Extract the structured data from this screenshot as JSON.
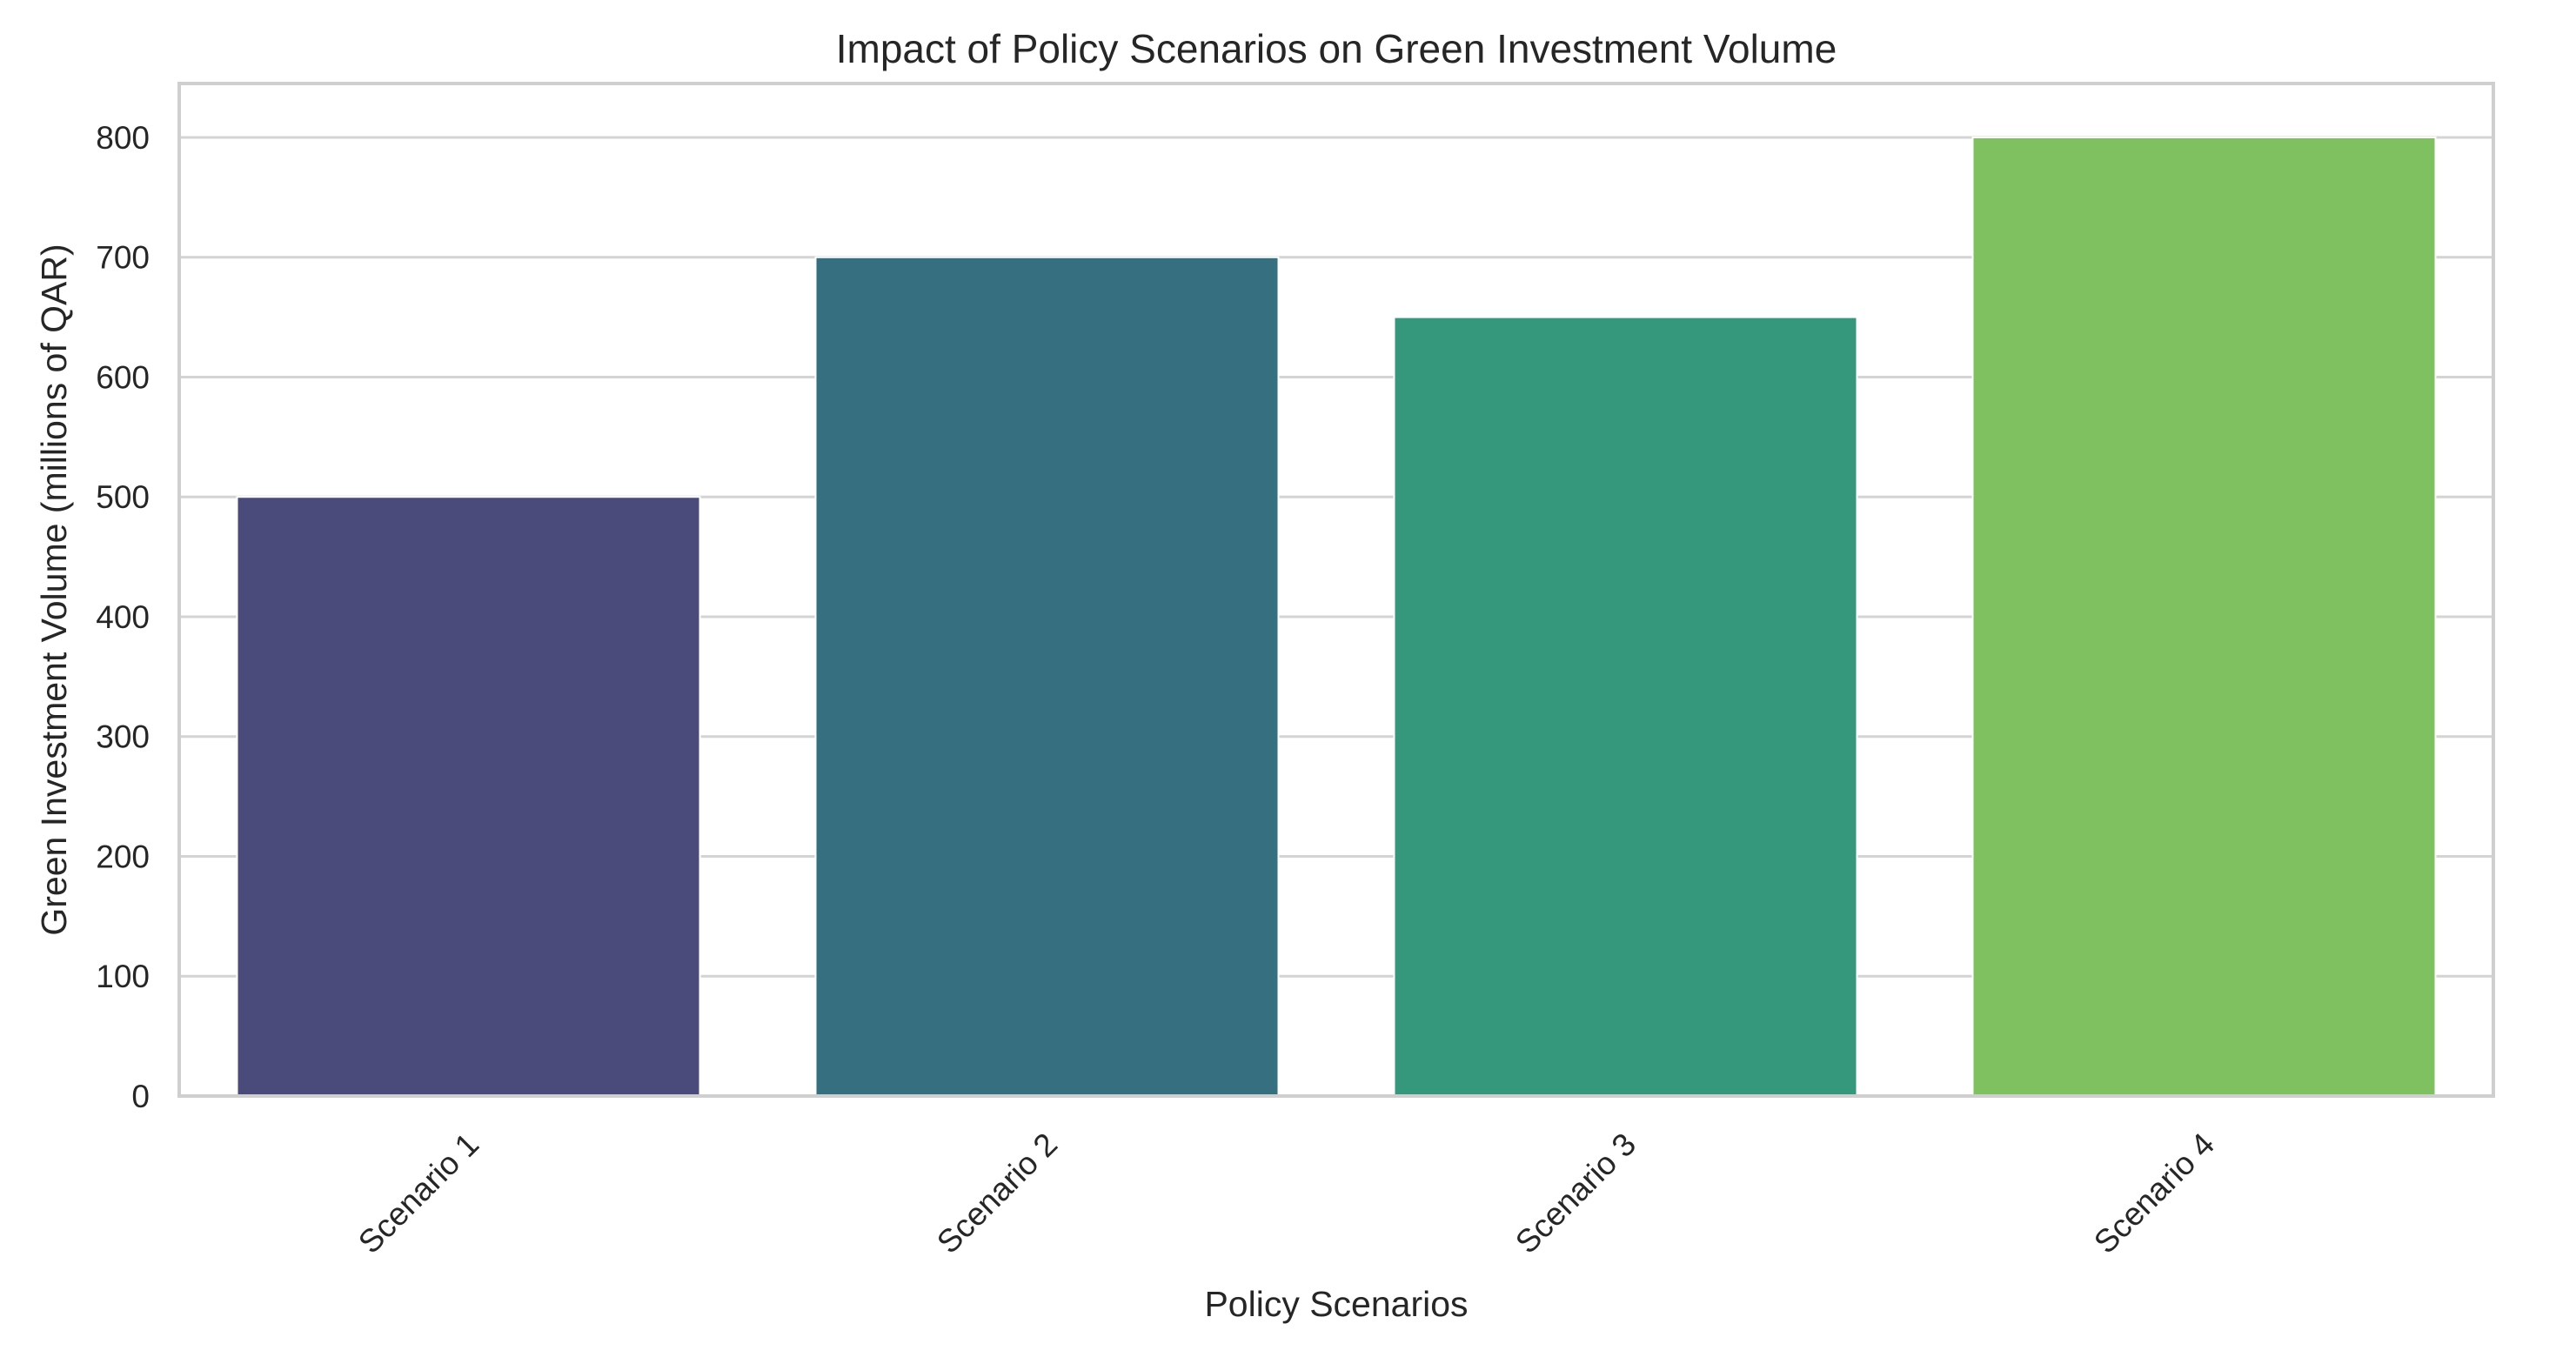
{
  "chart_data": {
    "type": "bar",
    "title": "Impact of Policy Scenarios on Green Investment Volume",
    "xlabel": "Policy Scenarios",
    "ylabel": "Green Investment Volume (millions of QAR)",
    "categories": [
      "Scenario 1",
      "Scenario 2",
      "Scenario 3",
      "Scenario 4"
    ],
    "values": [
      500,
      700,
      650,
      800
    ],
    "ylim": [
      0,
      845
    ],
    "yticks": [
      0,
      100,
      200,
      300,
      400,
      500,
      600,
      700,
      800
    ],
    "grid": true,
    "colors": [
      "#4a4a7b",
      "#367080",
      "#35987c",
      "#7fc160"
    ]
  }
}
